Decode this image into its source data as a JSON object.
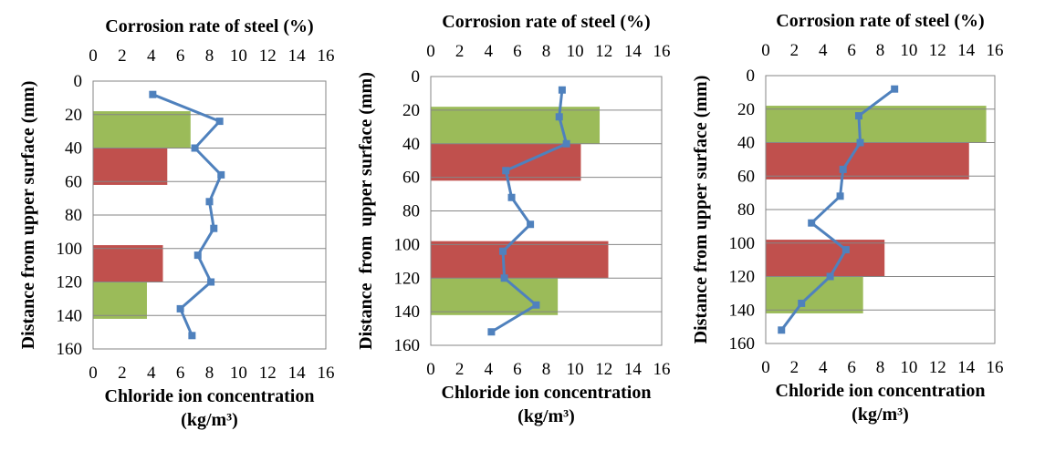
{
  "chart_data": [
    {
      "type": "bar",
      "top_title": "Corrosion rate of steel (%)",
      "ylabel": "Distance from upper surface (mm)",
      "xlabel_line1": "Chloride ion concentration",
      "xlabel_line2": "(kg/m³)",
      "ylim": [
        0,
        160
      ],
      "yticks": [
        "0",
        "20",
        "40",
        "60",
        "80",
        "100",
        "120",
        "140",
        "160"
      ],
      "xlim_bottom": [
        0,
        16
      ],
      "xlim_top": [
        0,
        16
      ],
      "xticks": [
        "0",
        "2",
        "4",
        "6",
        "8",
        "10",
        "12",
        "14",
        "16"
      ],
      "grid": "horizontal",
      "bars": [
        {
          "from": 18,
          "to": 40,
          "value": 6.7,
          "color": "#9BBB59"
        },
        {
          "from": 40,
          "to": 62,
          "value": 5.1,
          "color": "#C0504D"
        },
        {
          "from": 98,
          "to": 120,
          "value": 4.8,
          "color": "#C0504D"
        },
        {
          "from": 120,
          "to": 142,
          "value": 3.7,
          "color": "#9BBB59"
        }
      ],
      "line": {
        "color": "#4F81BD",
        "points": [
          [
            4.1,
            8
          ],
          [
            8.7,
            24
          ],
          [
            7.0,
            40
          ],
          [
            8.8,
            56
          ],
          [
            8.0,
            72
          ],
          [
            8.3,
            88
          ],
          [
            7.2,
            104
          ],
          [
            8.1,
            120
          ],
          [
            6.0,
            136
          ],
          [
            6.8,
            152
          ]
        ]
      }
    },
    {
      "type": "bar",
      "top_title": "Corrosion rate of steel (%)",
      "ylabel": "Distance  from  upper surface (mm)",
      "xlabel_line1": "Chloride ion concentration",
      "xlabel_line2": "(kg/m³)",
      "ylim": [
        0,
        160
      ],
      "yticks": [
        "0",
        "20",
        "40",
        "60",
        "80",
        "100",
        "120",
        "140",
        "160"
      ],
      "xlim_bottom": [
        0,
        16
      ],
      "xlim_top": [
        0,
        16
      ],
      "xticks": [
        "0",
        "2",
        "4",
        "6",
        "8",
        "10",
        "12",
        "14",
        "16"
      ],
      "grid": "horizontal",
      "bars": [
        {
          "from": 18,
          "to": 40,
          "value": 11.7,
          "color": "#9BBB59"
        },
        {
          "from": 40,
          "to": 62,
          "value": 10.4,
          "color": "#C0504D"
        },
        {
          "from": 98,
          "to": 120,
          "value": 12.3,
          "color": "#C0504D"
        },
        {
          "from": 120,
          "to": 142,
          "value": 8.8,
          "color": "#9BBB59"
        }
      ],
      "line": {
        "color": "#4F81BD",
        "points": [
          [
            9.1,
            8
          ],
          [
            8.9,
            24
          ],
          [
            9.4,
            40
          ],
          [
            5.2,
            56
          ],
          [
            5.6,
            72
          ],
          [
            6.9,
            88
          ],
          [
            5.0,
            104
          ],
          [
            5.1,
            120
          ],
          [
            7.3,
            136
          ],
          [
            4.2,
            152
          ]
        ]
      }
    },
    {
      "type": "bar",
      "top_title": "Corrosion rate of steel (%)",
      "ylabel": "Distance from upper surface (mm)",
      "xlabel_line1": "Chloride ion concentration",
      "xlabel_line2": "(kg/m³)",
      "ylim": [
        0,
        160
      ],
      "yticks": [
        "0",
        "20",
        "40",
        "60",
        "80",
        "100",
        "120",
        "140",
        "160"
      ],
      "xlim_bottom": [
        0,
        16
      ],
      "xlim_top": [
        0,
        16
      ],
      "xticks": [
        "0",
        "2",
        "4",
        "6",
        "8",
        "10",
        "12",
        "14",
        "16"
      ],
      "grid": "horizontal",
      "bars": [
        {
          "from": 18,
          "to": 40,
          "value": 15.4,
          "color": "#9BBB59"
        },
        {
          "from": 40,
          "to": 62,
          "value": 14.2,
          "color": "#C0504D"
        },
        {
          "from": 98,
          "to": 120,
          "value": 8.3,
          "color": "#C0504D"
        },
        {
          "from": 120,
          "to": 142,
          "value": 6.8,
          "color": "#9BBB59"
        }
      ],
      "line": {
        "color": "#4F81BD",
        "points": [
          [
            9.0,
            8
          ],
          [
            6.5,
            24
          ],
          [
            6.6,
            40
          ],
          [
            5.4,
            56
          ],
          [
            5.2,
            72
          ],
          [
            3.2,
            88
          ],
          [
            5.6,
            104
          ],
          [
            4.5,
            120
          ],
          [
            2.5,
            136
          ],
          [
            1.1,
            152
          ]
        ]
      }
    }
  ]
}
